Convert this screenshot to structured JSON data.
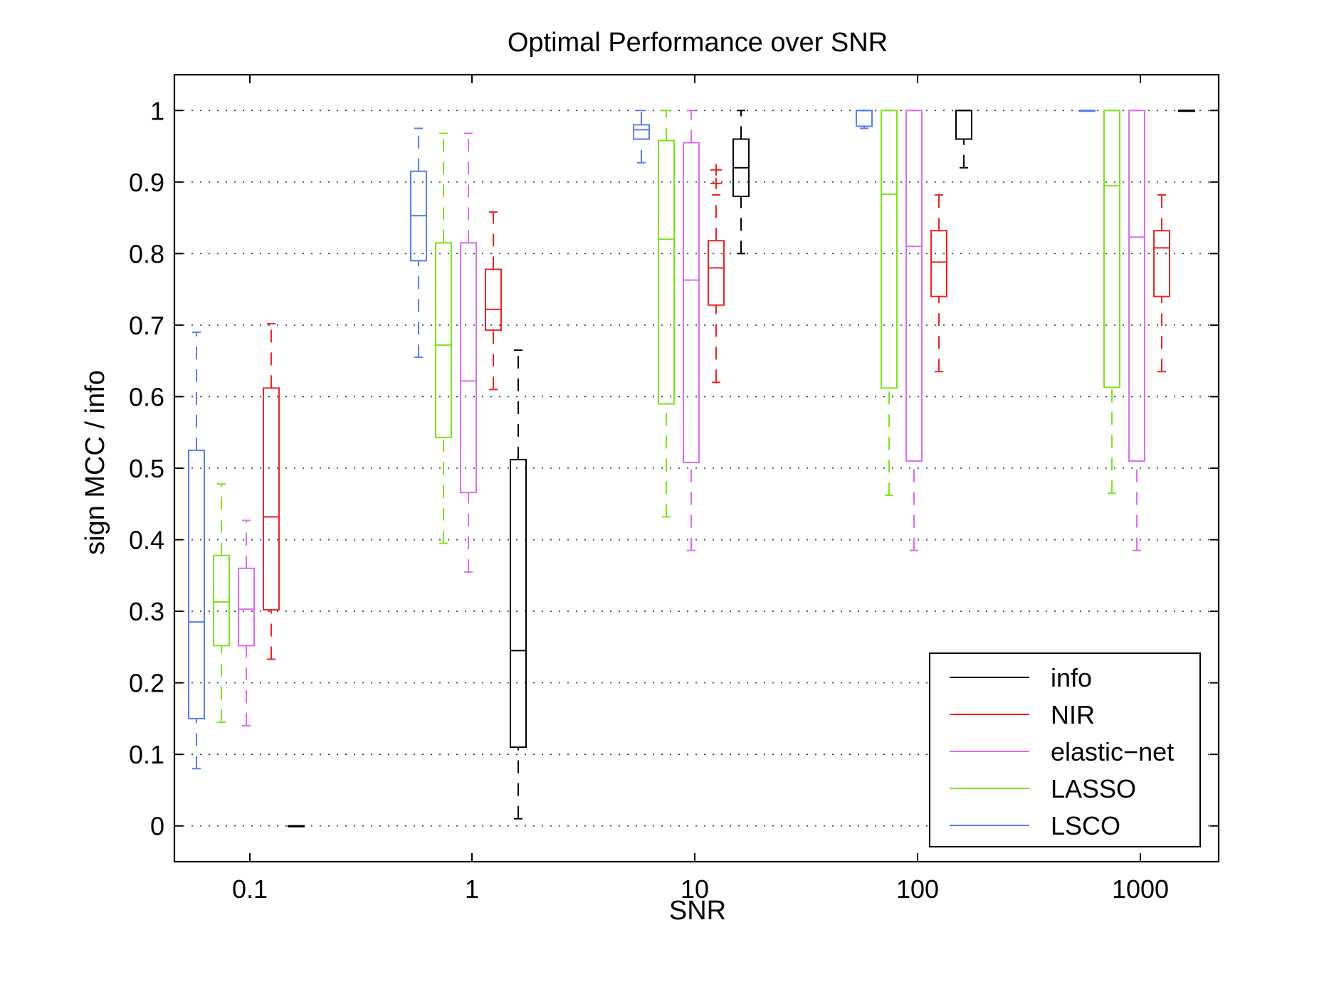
{
  "chart_data": {
    "type": "box",
    "title": "Optimal Performance over SNR",
    "xlabel": "SNR",
    "ylabel": "sign MCC / info",
    "ylim": [
      -0.05,
      1.05
    ],
    "yticks": [
      0,
      0.1,
      0.2,
      0.3,
      0.4,
      0.5,
      0.6,
      0.7,
      0.8,
      0.9,
      1
    ],
    "ytick_labels": [
      "0",
      "0.1",
      "0.2",
      "0.3",
      "0.4",
      "0.5",
      "0.6",
      "0.7",
      "0.8",
      "0.9",
      "1"
    ],
    "categories": [
      "0.1",
      "1",
      "10",
      "100",
      "1000"
    ],
    "grid": "horizontal dotted",
    "legend_position": "bottom-right",
    "series": [
      {
        "name": "LSCO",
        "color": "#5b7cf0",
        "boxes": [
          {
            "whislo": 0.08,
            "q1": 0.15,
            "med": 0.285,
            "q3": 0.525,
            "whishi": 0.69
          },
          {
            "whislo": 0.655,
            "q1": 0.79,
            "med": 0.853,
            "q3": 0.915,
            "whishi": 0.975
          },
          {
            "whislo": 0.927,
            "q1": 0.96,
            "med": 0.973,
            "q3": 0.98,
            "whishi": 1.0
          },
          {
            "whislo": 0.975,
            "q1": 0.978,
            "med": 1.0,
            "q3": 1.0,
            "whishi": 1.0
          },
          {
            "whislo": 1.0,
            "q1": 1.0,
            "med": 1.0,
            "q3": 1.0,
            "whishi": 1.0
          }
        ]
      },
      {
        "name": "LASSO",
        "color": "#7ee21c",
        "boxes": [
          {
            "whislo": 0.145,
            "q1": 0.252,
            "med": 0.313,
            "q3": 0.378,
            "whishi": 0.478
          },
          {
            "whislo": 0.395,
            "q1": 0.543,
            "med": 0.672,
            "q3": 0.815,
            "whishi": 0.968
          },
          {
            "whislo": 0.432,
            "q1": 0.59,
            "med": 0.82,
            "q3": 0.958,
            "whishi": 1.0
          },
          {
            "whislo": 0.462,
            "q1": 0.612,
            "med": 0.883,
            "q3": 1.0,
            "whishi": 1.0
          },
          {
            "whislo": 0.465,
            "q1": 0.613,
            "med": 0.895,
            "q3": 1.0,
            "whishi": 1.0
          }
        ]
      },
      {
        "name": "elastic−net",
        "color": "#dc6cf0",
        "boxes": [
          {
            "whislo": 0.14,
            "q1": 0.252,
            "med": 0.303,
            "q3": 0.36,
            "whishi": 0.427
          },
          {
            "whislo": 0.355,
            "q1": 0.466,
            "med": 0.622,
            "q3": 0.815,
            "whishi": 0.968
          },
          {
            "whislo": 0.385,
            "q1": 0.508,
            "med": 0.763,
            "q3": 0.955,
            "whishi": 1.0
          },
          {
            "whislo": 0.385,
            "q1": 0.51,
            "med": 0.81,
            "q3": 1.0,
            "whishi": 1.0
          },
          {
            "whislo": 0.385,
            "q1": 0.51,
            "med": 0.823,
            "q3": 1.0,
            "whishi": 1.0
          }
        ]
      },
      {
        "name": "NIR",
        "color": "#ee2222",
        "boxes": [
          {
            "whislo": 0.233,
            "q1": 0.302,
            "med": 0.432,
            "q3": 0.612,
            "whishi": 0.702
          },
          {
            "whislo": 0.61,
            "q1": 0.693,
            "med": 0.722,
            "q3": 0.778,
            "whishi": 0.858
          },
          {
            "whislo": 0.62,
            "q1": 0.728,
            "med": 0.78,
            "q3": 0.818,
            "whishi": 0.882,
            "outliers": [
              0.898,
              0.917
            ]
          },
          {
            "whislo": 0.635,
            "q1": 0.74,
            "med": 0.788,
            "q3": 0.832,
            "whishi": 0.882
          },
          {
            "whislo": 0.635,
            "q1": 0.74,
            "med": 0.808,
            "q3": 0.832,
            "whishi": 0.882
          }
        ]
      },
      {
        "name": "info",
        "color": "#000000",
        "boxes": [
          {
            "whislo": 0.0,
            "q1": 0.0,
            "med": 0.0,
            "q3": 0.0,
            "whishi": 0.0
          },
          {
            "whislo": 0.01,
            "q1": 0.11,
            "med": 0.245,
            "q3": 0.512,
            "whishi": 0.665
          },
          {
            "whislo": 0.8,
            "q1": 0.88,
            "med": 0.92,
            "q3": 0.96,
            "whishi": 1.0
          },
          {
            "whislo": 0.92,
            "q1": 0.96,
            "med": 1.0,
            "q3": 1.0,
            "whishi": 1.0
          },
          {
            "whislo": 1.0,
            "q1": 1.0,
            "med": 1.0,
            "q3": 1.0,
            "whishi": 1.0
          }
        ]
      }
    ],
    "legend_order": [
      "info",
      "NIR",
      "elastic−net",
      "LASSO",
      "LSCO"
    ]
  }
}
